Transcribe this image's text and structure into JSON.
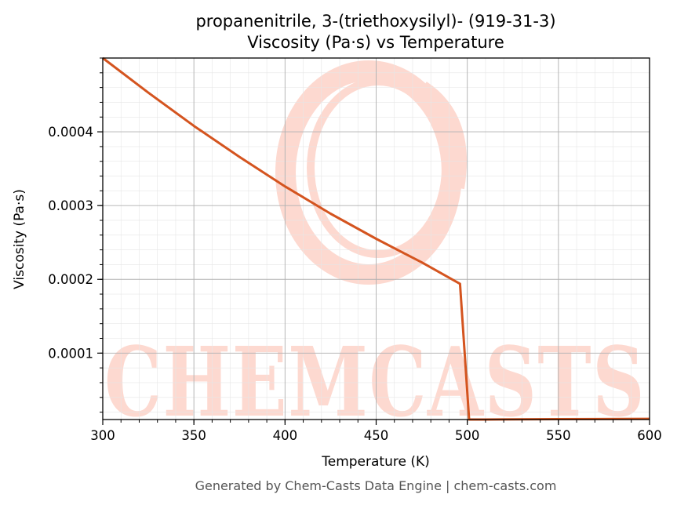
{
  "chart_data": {
    "type": "line",
    "title": "propanenitrile, 3-(triethoxysilyl)- (919-31-3)",
    "subtitle": "Viscosity (Pa·s) vs Temperature",
    "xlabel": "Temperature (K)",
    "ylabel": "Viscosity (Pa·s)",
    "xlim": [
      300,
      600
    ],
    "ylim": [
      1e-05,
      0.0005
    ],
    "x_ticks": [
      300,
      350,
      400,
      450,
      500,
      550,
      600
    ],
    "x_tick_labels": [
      "300",
      "350",
      "400",
      "450",
      "500",
      "550",
      "600"
    ],
    "y_ticks": [
      0.0001,
      0.0002,
      0.0003,
      0.0004
    ],
    "y_tick_labels": [
      "0.0001",
      "0.0002",
      "0.0003",
      "0.0004"
    ],
    "grid": true,
    "minor_grid": true,
    "legend": "none",
    "line_color": "#d4541f",
    "series": [
      {
        "x": [
          300,
          325,
          350,
          375,
          400,
          425,
          450,
          475,
          496,
          501,
          510,
          550,
          600
        ],
        "values": [
          0.0005,
          0.000453,
          0.000408,
          0.000366,
          0.000326,
          0.000289,
          0.000255,
          0.000223,
          0.000194,
          1e-05,
          1e-05,
          1.05e-05,
          1.1e-05
        ]
      }
    ]
  },
  "watermark": {
    "text": "CHEMCASTS",
    "color": "#fdd9d0"
  },
  "footer": {
    "text": "Generated by Chem-Casts Data Engine | chem-casts.com"
  }
}
